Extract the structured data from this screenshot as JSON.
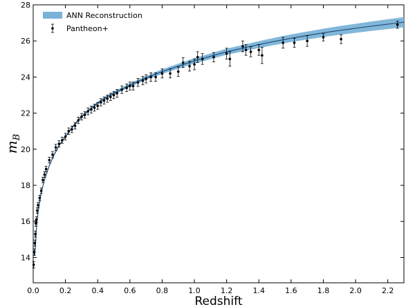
{
  "chart_data": {
    "type": "line",
    "xlabel": "Redshift",
    "ylabel_main": "m",
    "ylabel_sub": "B",
    "xlim": [
      0.0,
      2.3
    ],
    "ylim": [
      12.6,
      28.0
    ],
    "x_ticks": [
      0.0,
      0.2,
      0.4,
      0.6,
      0.8,
      1.0,
      1.2,
      1.4,
      1.6,
      1.8,
      2.0,
      2.2
    ],
    "x_tick_labels": [
      "0.0",
      "0.2",
      "0.4",
      "0.6",
      "0.8",
      "1.0",
      "1.2",
      "1.4",
      "1.6",
      "1.8",
      "2.0",
      "2.2"
    ],
    "y_ticks": [
      14,
      16,
      18,
      20,
      22,
      24,
      26,
      28
    ],
    "y_tick_labels": [
      "14",
      "16",
      "18",
      "20",
      "22",
      "24",
      "26",
      "28"
    ],
    "grid": false,
    "legend_position": "top-left",
    "legend": [
      {
        "label": "ANN Reconstruction",
        "kind": "band",
        "color": "#7bb3d8"
      },
      {
        "label": "Pantheon+",
        "kind": "errorbar",
        "color": "#000000"
      }
    ],
    "series": [
      {
        "name": "ANN Reconstruction",
        "kind": "line_with_band",
        "line_color": "#1f4f78",
        "band_color": "#7bb3d8",
        "x": [
          0.01,
          0.02,
          0.03,
          0.05,
          0.07,
          0.1,
          0.13,
          0.16,
          0.2,
          0.25,
          0.3,
          0.35,
          0.4,
          0.45,
          0.5,
          0.6,
          0.7,
          0.8,
          0.9,
          1.0,
          1.1,
          1.2,
          1.3,
          1.4,
          1.5,
          1.6,
          1.7,
          1.8,
          1.9,
          2.0,
          2.1,
          2.2,
          2.3
        ],
        "y": [
          14.1,
          15.6,
          16.5,
          17.6,
          18.3,
          19.1,
          19.7,
          20.2,
          20.7,
          21.3,
          21.8,
          22.2,
          22.55,
          22.85,
          23.1,
          23.55,
          23.95,
          24.3,
          24.6,
          24.9,
          25.15,
          25.4,
          25.6,
          25.8,
          25.98,
          26.15,
          26.3,
          26.45,
          26.58,
          26.7,
          26.82,
          26.93,
          27.04
        ],
        "band_halfwidth": [
          0.06,
          0.06,
          0.06,
          0.06,
          0.06,
          0.06,
          0.06,
          0.06,
          0.06,
          0.07,
          0.07,
          0.07,
          0.08,
          0.08,
          0.09,
          0.1,
          0.11,
          0.13,
          0.14,
          0.15,
          0.16,
          0.17,
          0.18,
          0.19,
          0.2,
          0.21,
          0.22,
          0.23,
          0.24,
          0.25,
          0.26,
          0.27,
          0.28
        ]
      },
      {
        "name": "Pantheon+",
        "kind": "errorbar",
        "color": "#000000",
        "x": [
          0.003,
          0.006,
          0.01,
          0.013,
          0.016,
          0.02,
          0.025,
          0.03,
          0.04,
          0.05,
          0.06,
          0.07,
          0.08,
          0.1,
          0.12,
          0.14,
          0.16,
          0.18,
          0.2,
          0.22,
          0.24,
          0.26,
          0.28,
          0.3,
          0.32,
          0.34,
          0.36,
          0.38,
          0.4,
          0.42,
          0.44,
          0.46,
          0.48,
          0.5,
          0.52,
          0.55,
          0.58,
          0.6,
          0.62,
          0.65,
          0.68,
          0.7,
          0.73,
          0.76,
          0.8,
          0.85,
          0.9,
          0.93,
          0.97,
          1.0,
          1.02,
          1.05,
          1.12,
          1.2,
          1.22,
          1.3,
          1.32,
          1.35,
          1.4,
          1.42,
          1.55,
          1.62,
          1.7,
          1.8,
          1.91,
          2.26
        ],
        "y": [
          13.6,
          14.3,
          14.8,
          15.3,
          15.9,
          16.1,
          16.6,
          16.9,
          17.3,
          17.7,
          18.3,
          18.6,
          18.9,
          19.4,
          19.7,
          20.1,
          20.3,
          20.5,
          20.7,
          21.0,
          21.1,
          21.3,
          21.6,
          21.8,
          21.9,
          22.1,
          22.2,
          22.3,
          22.4,
          22.6,
          22.7,
          22.8,
          22.9,
          23.0,
          23.1,
          23.3,
          23.4,
          23.5,
          23.5,
          23.7,
          23.8,
          23.9,
          24.0,
          24.0,
          24.2,
          24.2,
          24.3,
          24.8,
          24.6,
          24.7,
          25.1,
          25.0,
          25.1,
          25.3,
          25.0,
          25.7,
          25.5,
          25.4,
          25.5,
          25.2,
          25.9,
          25.9,
          26.0,
          26.2,
          26.1,
          26.9
        ],
        "yerr": [
          0.18,
          0.18,
          0.17,
          0.17,
          0.17,
          0.16,
          0.15,
          0.15,
          0.15,
          0.15,
          0.15,
          0.16,
          0.16,
          0.16,
          0.17,
          0.17,
          0.17,
          0.17,
          0.18,
          0.18,
          0.18,
          0.18,
          0.18,
          0.18,
          0.18,
          0.19,
          0.19,
          0.19,
          0.19,
          0.2,
          0.2,
          0.2,
          0.2,
          0.2,
          0.21,
          0.21,
          0.21,
          0.22,
          0.22,
          0.22,
          0.23,
          0.23,
          0.24,
          0.24,
          0.25,
          0.25,
          0.26,
          0.27,
          0.27,
          0.3,
          0.3,
          0.3,
          0.26,
          0.3,
          0.4,
          0.3,
          0.3,
          0.28,
          0.3,
          0.45,
          0.3,
          0.25,
          0.3,
          0.2,
          0.25,
          0.2
        ]
      }
    ]
  }
}
